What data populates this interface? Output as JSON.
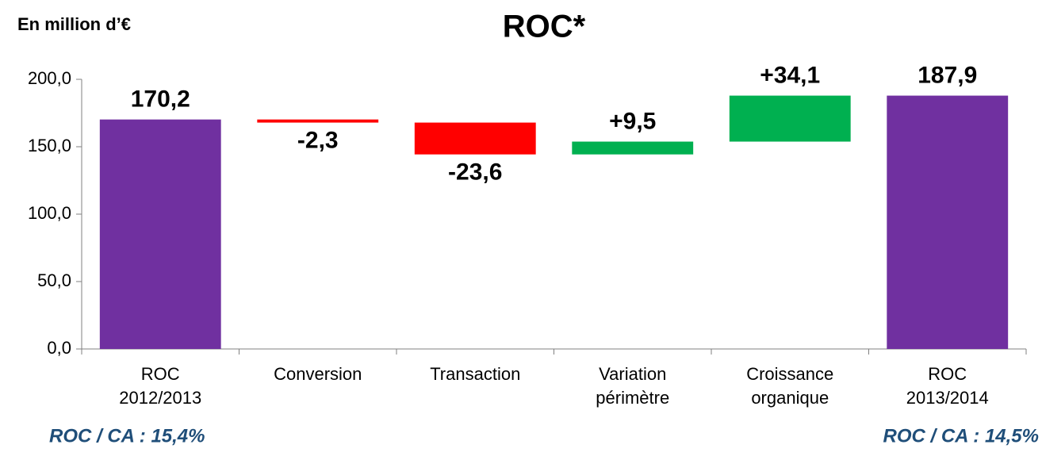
{
  "chart_data": {
    "type": "waterfall",
    "title": "ROC*",
    "unit_label": "En million d’€",
    "categories": [
      [
        "ROC",
        "2012/2013"
      ],
      [
        "Conversion"
      ],
      [
        "Transaction"
      ],
      [
        "Variation",
        "périmètre"
      ],
      [
        "Croissance",
        "organique"
      ],
      [
        "ROC",
        "2013/2014"
      ]
    ],
    "values": [
      170.2,
      -2.3,
      -23.6,
      9.5,
      34.1,
      187.9
    ],
    "value_labels": [
      "170,2",
      "-2,3",
      "-23,6",
      "+9,5",
      "+34,1",
      "187,9"
    ],
    "totals": [
      true,
      false,
      false,
      false,
      false,
      true
    ],
    "colors": {
      "total": "#7030a0",
      "negative": "#ff0000",
      "positive": "#00b050"
    },
    "ylim": [
      0,
      200
    ],
    "yticks": [
      {
        "value": 0,
        "label": "0,0"
      },
      {
        "value": 50,
        "label": "50,0"
      },
      {
        "value": 100,
        "label": "100,0"
      },
      {
        "value": 150,
        "label": "150,0"
      },
      {
        "value": 200,
        "label": "200,0"
      }
    ],
    "annotations": [
      "ROC / CA : 15,4%",
      "ROC / CA : 14,5%"
    ]
  }
}
